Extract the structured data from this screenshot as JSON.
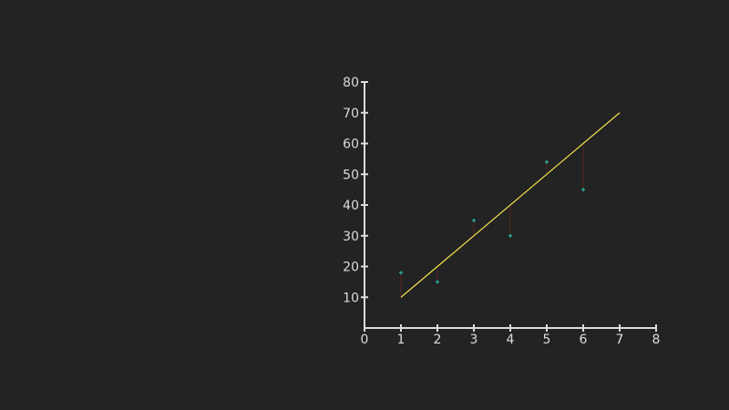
{
  "chart_data": {
    "type": "scatter",
    "xlim": [
      0,
      8
    ],
    "ylim": [
      0,
      80
    ],
    "x_ticks": [
      0,
      1,
      2,
      3,
      4,
      5,
      6,
      7,
      8
    ],
    "y_ticks": [
      10,
      20,
      30,
      40,
      50,
      60,
      70,
      80
    ],
    "grid": false,
    "series": [
      {
        "kind": "points",
        "x": [
          1,
          2,
          3,
          4,
          5,
          6
        ],
        "y": [
          18,
          15,
          35,
          30,
          54,
          45
        ]
      },
      {
        "kind": "line",
        "x": [
          1,
          7
        ],
        "y": [
          10,
          70
        ]
      }
    ],
    "residuals": true
  },
  "colors": {
    "background": "#232323",
    "axis": "#dcdcdc",
    "points": "#2bb5a0",
    "fit_line": "#f2e34a",
    "residual": "#5a2424"
  }
}
